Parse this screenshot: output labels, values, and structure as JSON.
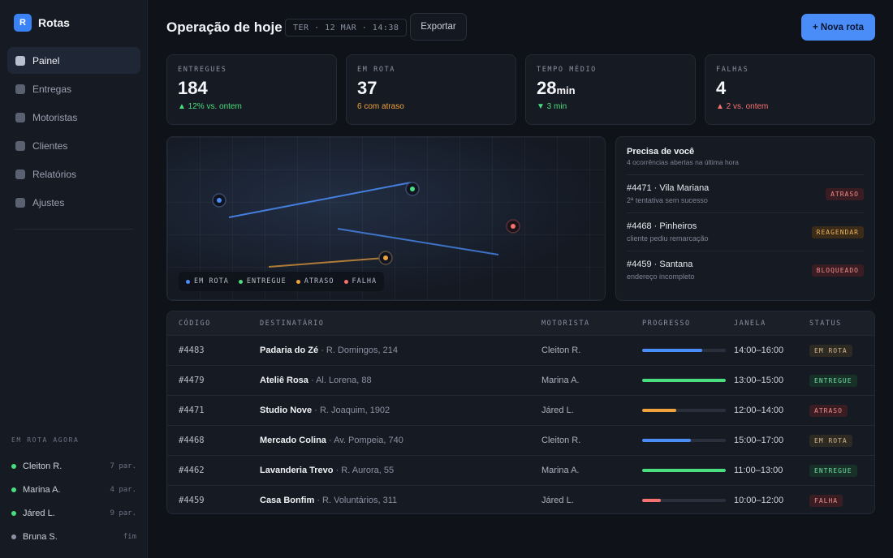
{
  "brand": {
    "logo_letter": "R",
    "name": "Rotas"
  },
  "nav": [
    {
      "label": "Painel",
      "active": true
    },
    {
      "label": "Entregas",
      "active": false
    },
    {
      "label": "Motoristas",
      "active": false
    },
    {
      "label": "Clientes",
      "active": false
    },
    {
      "label": "Relatórios",
      "active": false
    },
    {
      "label": "Ajustes",
      "active": false
    }
  ],
  "on_route": {
    "title": "EM ROTA AGORA",
    "drivers": [
      {
        "name": "Cleiton R.",
        "count": "7 par.",
        "color": "#4ade80"
      },
      {
        "name": "Marina A.",
        "count": "4 par.",
        "color": "#4ade80"
      },
      {
        "name": "Járed L.",
        "count": "9 par.",
        "color": "#4ade80"
      },
      {
        "name": "Bruna S.",
        "count": "fim",
        "color": "#8a93a3"
      }
    ]
  },
  "header": {
    "title": "Operação de hoje",
    "date": "TER · 12 MAR · 14:38",
    "export_label": "Exportar",
    "new_route_label": "+ Nova rota"
  },
  "kpis": [
    {
      "label": "ENTREGUES",
      "value": "184",
      "unit": "",
      "delta": "▲ 12% vs. ontem",
      "delta_color": "green"
    },
    {
      "label": "EM ROTA",
      "value": "37",
      "unit": "",
      "delta": "6 com atraso",
      "delta_color": "orange"
    },
    {
      "label": "TEMPO MÉDIO",
      "value": "28",
      "unit": "min",
      "delta": "▼ 3 min",
      "delta_color": "green"
    },
    {
      "label": "FALHAS",
      "value": "4",
      "unit": "",
      "delta": "▲ 2 vs. ontem",
      "delta_color": "red"
    }
  ],
  "map": {
    "legend": [
      {
        "label": "EM ROTA",
        "color": "#4b8df8"
      },
      {
        "label": "ENTREGUE",
        "color": "#4ade80"
      },
      {
        "label": "ATRASO",
        "color": "#f0a23c"
      },
      {
        "label": "FALHA",
        "color": "#f87171"
      }
    ]
  },
  "attention": {
    "title": "Precisa de você",
    "subtitle": "4 ocorrências abertas na última hora",
    "items": [
      {
        "name": "#4471 · Vila Mariana",
        "note": "2ª tentativa sem sucesso",
        "badge": "ATRASO",
        "kind": "atraso"
      },
      {
        "name": "#4468 · Pinheiros",
        "note": "cliente pediu remarcação",
        "badge": "REAGENDAR",
        "kind": "reagendar"
      },
      {
        "name": "#4459 · Santana",
        "note": "endereço incompleto",
        "badge": "BLOQUEADO",
        "kind": "bloqueado"
      }
    ]
  },
  "table": {
    "headers": [
      "CÓDIGO",
      "DESTINATÁRIO",
      "MOTORISTA",
      "PROGRESSO",
      "JANELA",
      "STATUS"
    ],
    "rows": [
      {
        "code": "#4483",
        "name": "Padaria do Zé",
        "addr": "· R. Domingos, 214",
        "driver": "Cleiton R.",
        "progress": 0.72,
        "bar_color": "#4b8df8",
        "window": "14:00–16:00",
        "status": "EM ROTA",
        "kind": "emrota"
      },
      {
        "code": "#4479",
        "name": "Ateliê Rosa",
        "addr": "· Al. Lorena, 88",
        "driver": "Marina A.",
        "progress": 1.0,
        "bar_color": "#4ade80",
        "window": "13:00–15:00",
        "status": "ENTREGUE",
        "kind": "entregue"
      },
      {
        "code": "#4471",
        "name": "Studio Nove",
        "addr": "· R. Joaquim, 1902",
        "driver": "Járed L.",
        "progress": 0.41,
        "bar_color": "#f0a23c",
        "window": "12:00–14:00",
        "status": "ATRASO",
        "kind": "atraso"
      },
      {
        "code": "#4468",
        "name": "Mercado Colina",
        "addr": "· Av. Pompeia, 740",
        "driver": "Cleiton R.",
        "progress": 0.58,
        "bar_color": "#4b8df8",
        "window": "15:00–17:00",
        "status": "EM ROTA",
        "kind": "emrota"
      },
      {
        "code": "#4462",
        "name": "Lavanderia Trevo",
        "addr": "· R. Aurora, 55",
        "driver": "Marina A.",
        "progress": 1.0,
        "bar_color": "#4ade80",
        "window": "11:00–13:00",
        "status": "ENTREGUE",
        "kind": "entregue"
      },
      {
        "code": "#4459",
        "name": "Casa Bonfim",
        "addr": "· R. Voluntários, 311",
        "driver": "Járed L.",
        "progress": 0.22,
        "bar_color": "#f87171",
        "window": "10:00–12:00",
        "status": "FALHA",
        "kind": "falha"
      }
    ]
  }
}
